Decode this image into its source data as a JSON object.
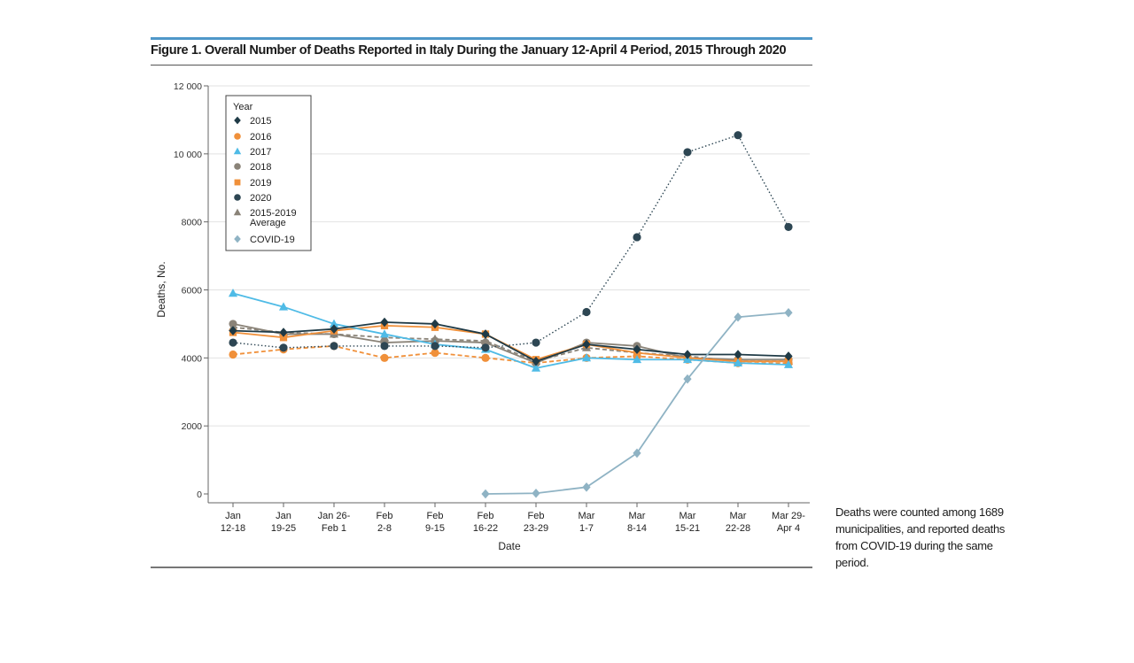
{
  "figure": {
    "title": "Figure 1. Overall Number of Deaths Reported in Italy During the January 12-April 4 Period, 2015 Through 2020",
    "caption": "Deaths were counted among 1689 municipalities, and reported deaths from COVID-19 during the same period."
  },
  "chart_data": {
    "type": "line",
    "xlabel": "Date",
    "ylabel": "Deaths, No.",
    "ylim": [
      0,
      12000
    ],
    "yticks": [
      0,
      2000,
      4000,
      6000,
      8000,
      10000,
      12000
    ],
    "ytick_labels": [
      "0",
      "2000",
      "4000",
      "6000",
      "8000",
      "10 000",
      "12 000"
    ],
    "grid": "horizontal",
    "legend_title": "Year",
    "legend_position": "top-left",
    "categories": [
      [
        "Jan",
        "12-18"
      ],
      [
        "Jan",
        "19-25"
      ],
      [
        "Jan 26-",
        "Feb 1"
      ],
      [
        "Feb",
        "2-8"
      ],
      [
        "Feb",
        "9-15"
      ],
      [
        "Feb",
        "16-22"
      ],
      [
        "Feb",
        "23-29"
      ],
      [
        "Mar",
        "1-7"
      ],
      [
        "Mar",
        "8-14"
      ],
      [
        "Mar",
        "15-21"
      ],
      [
        "Mar",
        "22-28"
      ],
      [
        "Mar 29-",
        "Apr 4"
      ]
    ],
    "series": [
      {
        "name": "2015",
        "color": "#1f3a46",
        "marker": "diamond",
        "line": "solid",
        "values": [
          4800,
          4750,
          4850,
          5050,
          5000,
          4700,
          3900,
          4400,
          4250,
          4100,
          4100,
          4050
        ]
      },
      {
        "name": "2016",
        "color": "#f0903a",
        "marker": "circle",
        "line": "dashed",
        "values": [
          4100,
          4250,
          4350,
          4000,
          4150,
          4000,
          3850,
          4000,
          4050,
          3950,
          3850,
          3850
        ]
      },
      {
        "name": "2017",
        "color": "#4fbbe6",
        "marker": "triangle",
        "line": "solid",
        "values": [
          5900,
          5500,
          5000,
          4700,
          4400,
          4250,
          3700,
          4000,
          3950,
          3950,
          3850,
          3800
        ]
      },
      {
        "name": "2018",
        "color": "#8a8378",
        "marker": "circle",
        "line": "solid",
        "values": [
          5000,
          4700,
          4700,
          4450,
          4500,
          4450,
          3850,
          4450,
          4350,
          4000,
          3950,
          3950
        ]
      },
      {
        "name": "2019",
        "color": "#f0903a",
        "marker": "square",
        "line": "solid",
        "values": [
          4750,
          4600,
          4800,
          4950,
          4900,
          4700,
          3950,
          4400,
          4150,
          4000,
          3900,
          3900
        ]
      },
      {
        "name": "2020",
        "color": "#2d4653",
        "marker": "circle",
        "line": "dotted",
        "values": [
          4450,
          4300,
          4350,
          4350,
          4350,
          4300,
          4450,
          5350,
          7550,
          10050,
          10550,
          7850
        ]
      },
      {
        "name": "2015-2019 Average",
        "color": "#8a8378",
        "marker": "triangle",
        "line": "dashed",
        "values": [
          4900,
          4750,
          4700,
          4600,
          4550,
          4500,
          3900,
          4300,
          4150,
          4050,
          3900,
          3900
        ]
      },
      {
        "name": "COVID-19",
        "color": "#8fb3c4",
        "marker": "diamond",
        "line": "solid",
        "values": [
          null,
          null,
          null,
          null,
          null,
          0,
          20,
          200,
          1200,
          3380,
          5200,
          5330
        ]
      }
    ]
  }
}
